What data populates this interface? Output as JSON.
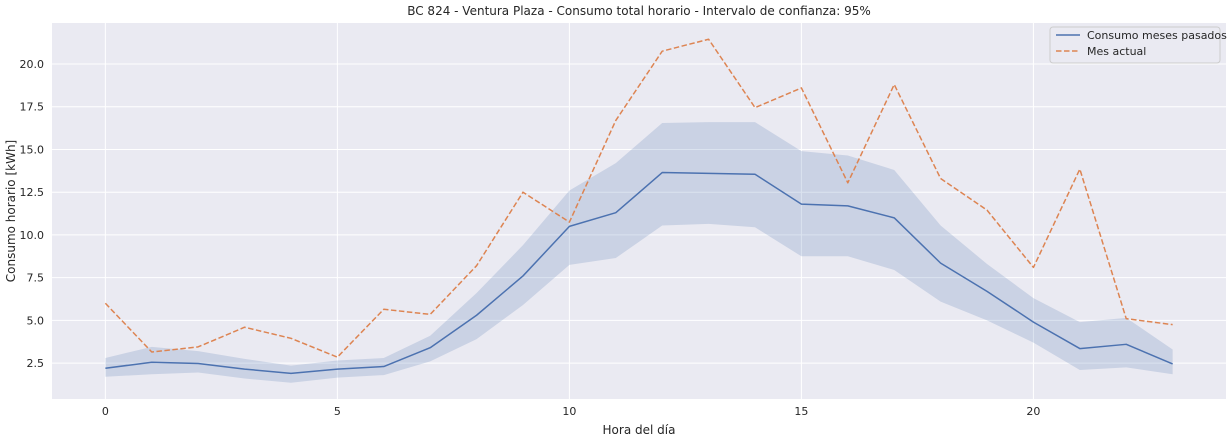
{
  "chart_data": {
    "type": "line",
    "title": "BC 824 - Ventura Plaza - Consumo total horario - Intervalo de confianza: 95%",
    "xlabel": "Hora del día",
    "ylabel": "Consumo horario [kWh]",
    "xlim": [
      -1.15,
      24.15
    ],
    "ylim": [
      0.4,
      22.4
    ],
    "xticks": [
      0,
      5,
      10,
      15,
      20
    ],
    "yticks": [
      2.5,
      5.0,
      7.5,
      10.0,
      12.5,
      15.0,
      17.5,
      20.0
    ],
    "ytick_labels": [
      "2.5",
      "5.0",
      "7.5",
      "10.0",
      "12.5",
      "15.0",
      "17.5",
      "20.0"
    ],
    "grid": true,
    "legend_position": "top-right",
    "x": [
      0,
      1,
      2,
      3,
      4,
      5,
      6,
      7,
      8,
      9,
      10,
      11,
      12,
      13,
      14,
      15,
      16,
      17,
      18,
      19,
      20,
      21,
      22,
      23
    ],
    "series": [
      {
        "name": "Consumo meses pasados",
        "color": "#4c72b0",
        "style": "solid",
        "values": [
          2.2,
          2.55,
          2.48,
          2.15,
          1.9,
          2.15,
          2.3,
          3.4,
          5.3,
          7.6,
          10.5,
          11.3,
          13.65,
          13.6,
          13.55,
          11.8,
          11.7,
          11.0,
          8.35,
          6.7,
          4.9,
          3.35,
          3.6,
          2.45
        ],
        "ci_lower": [
          1.7,
          1.85,
          1.95,
          1.6,
          1.35,
          1.65,
          1.8,
          2.6,
          3.9,
          5.9,
          8.25,
          8.65,
          10.55,
          10.65,
          10.45,
          8.75,
          8.75,
          7.95,
          6.1,
          5.0,
          3.7,
          2.1,
          2.25,
          1.85
        ],
        "ci_upper": [
          2.8,
          3.45,
          3.2,
          2.75,
          2.35,
          2.65,
          2.8,
          4.1,
          6.6,
          9.4,
          12.6,
          14.2,
          16.55,
          16.6,
          16.6,
          14.9,
          14.65,
          13.8,
          10.55,
          8.3,
          6.3,
          4.9,
          5.15,
          3.3
        ]
      },
      {
        "name": "Mes actual",
        "color": "#dd8452",
        "style": "dashed",
        "values": [
          6.0,
          3.15,
          3.45,
          4.6,
          3.95,
          2.85,
          5.65,
          5.35,
          8.2,
          12.5,
          10.75,
          16.7,
          20.75,
          21.45,
          17.45,
          18.6,
          13.05,
          18.8,
          13.3,
          11.45,
          8.1,
          13.85,
          5.1,
          4.75
        ]
      }
    ]
  }
}
